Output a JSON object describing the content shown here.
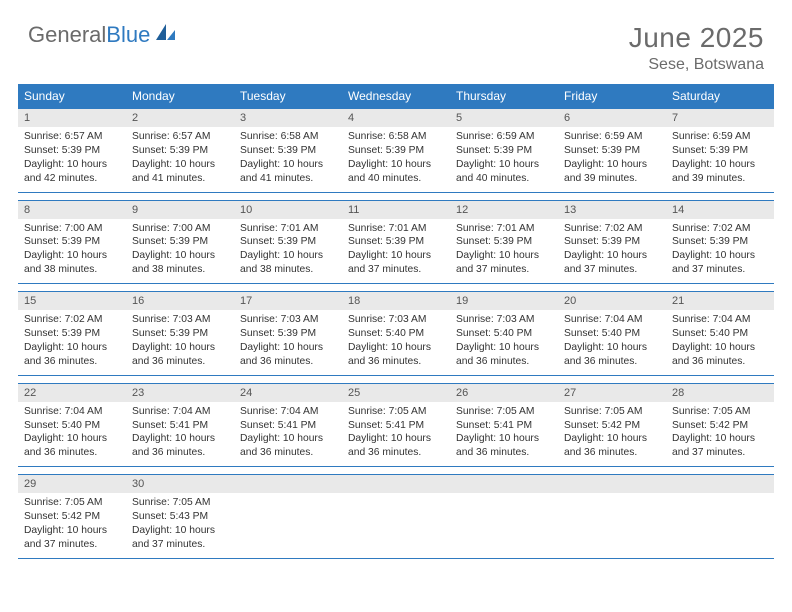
{
  "brand": {
    "word1": "General",
    "word2": "Blue"
  },
  "title": "June 2025",
  "location": "Sese, Botswana",
  "colors": {
    "header_bg": "#2f7ac0",
    "header_text": "#ffffff",
    "daynum_bg": "#e9e9e9",
    "daynum_text": "#555555",
    "body_text": "#333333",
    "rule": "#2f7ac0",
    "title_text": "#6b6b6b",
    "logo_accent": "#2f7ac0",
    "logo_gray": "#6b6b6b",
    "page_bg": "#ffffff"
  },
  "typography": {
    "title_fontsize": 28,
    "location_fontsize": 16,
    "dayhead_fontsize": 12,
    "daynum_fontsize": 11,
    "body_fontsize": 10.3
  },
  "day_headers": [
    "Sunday",
    "Monday",
    "Tuesday",
    "Wednesday",
    "Thursday",
    "Friday",
    "Saturday"
  ],
  "weeks": [
    [
      {
        "n": "1",
        "sr": "6:57 AM",
        "ss": "5:39 PM",
        "dh": "10",
        "dm": "42"
      },
      {
        "n": "2",
        "sr": "6:57 AM",
        "ss": "5:39 PM",
        "dh": "10",
        "dm": "41"
      },
      {
        "n": "3",
        "sr": "6:58 AM",
        "ss": "5:39 PM",
        "dh": "10",
        "dm": "41"
      },
      {
        "n": "4",
        "sr": "6:58 AM",
        "ss": "5:39 PM",
        "dh": "10",
        "dm": "40"
      },
      {
        "n": "5",
        "sr": "6:59 AM",
        "ss": "5:39 PM",
        "dh": "10",
        "dm": "40"
      },
      {
        "n": "6",
        "sr": "6:59 AM",
        "ss": "5:39 PM",
        "dh": "10",
        "dm": "39"
      },
      {
        "n": "7",
        "sr": "6:59 AM",
        "ss": "5:39 PM",
        "dh": "10",
        "dm": "39"
      }
    ],
    [
      {
        "n": "8",
        "sr": "7:00 AM",
        "ss": "5:39 PM",
        "dh": "10",
        "dm": "38"
      },
      {
        "n": "9",
        "sr": "7:00 AM",
        "ss": "5:39 PM",
        "dh": "10",
        "dm": "38"
      },
      {
        "n": "10",
        "sr": "7:01 AM",
        "ss": "5:39 PM",
        "dh": "10",
        "dm": "38"
      },
      {
        "n": "11",
        "sr": "7:01 AM",
        "ss": "5:39 PM",
        "dh": "10",
        "dm": "37"
      },
      {
        "n": "12",
        "sr": "7:01 AM",
        "ss": "5:39 PM",
        "dh": "10",
        "dm": "37"
      },
      {
        "n": "13",
        "sr": "7:02 AM",
        "ss": "5:39 PM",
        "dh": "10",
        "dm": "37"
      },
      {
        "n": "14",
        "sr": "7:02 AM",
        "ss": "5:39 PM",
        "dh": "10",
        "dm": "37"
      }
    ],
    [
      {
        "n": "15",
        "sr": "7:02 AM",
        "ss": "5:39 PM",
        "dh": "10",
        "dm": "36"
      },
      {
        "n": "16",
        "sr": "7:03 AM",
        "ss": "5:39 PM",
        "dh": "10",
        "dm": "36"
      },
      {
        "n": "17",
        "sr": "7:03 AM",
        "ss": "5:39 PM",
        "dh": "10",
        "dm": "36"
      },
      {
        "n": "18",
        "sr": "7:03 AM",
        "ss": "5:40 PM",
        "dh": "10",
        "dm": "36"
      },
      {
        "n": "19",
        "sr": "7:03 AM",
        "ss": "5:40 PM",
        "dh": "10",
        "dm": "36"
      },
      {
        "n": "20",
        "sr": "7:04 AM",
        "ss": "5:40 PM",
        "dh": "10",
        "dm": "36"
      },
      {
        "n": "21",
        "sr": "7:04 AM",
        "ss": "5:40 PM",
        "dh": "10",
        "dm": "36"
      }
    ],
    [
      {
        "n": "22",
        "sr": "7:04 AM",
        "ss": "5:40 PM",
        "dh": "10",
        "dm": "36"
      },
      {
        "n": "23",
        "sr": "7:04 AM",
        "ss": "5:41 PM",
        "dh": "10",
        "dm": "36"
      },
      {
        "n": "24",
        "sr": "7:04 AM",
        "ss": "5:41 PM",
        "dh": "10",
        "dm": "36"
      },
      {
        "n": "25",
        "sr": "7:05 AM",
        "ss": "5:41 PM",
        "dh": "10",
        "dm": "36"
      },
      {
        "n": "26",
        "sr": "7:05 AM",
        "ss": "5:41 PM",
        "dh": "10",
        "dm": "36"
      },
      {
        "n": "27",
        "sr": "7:05 AM",
        "ss": "5:42 PM",
        "dh": "10",
        "dm": "36"
      },
      {
        "n": "28",
        "sr": "7:05 AM",
        "ss": "5:42 PM",
        "dh": "10",
        "dm": "37"
      }
    ],
    [
      {
        "n": "29",
        "sr": "7:05 AM",
        "ss": "5:42 PM",
        "dh": "10",
        "dm": "37"
      },
      {
        "n": "30",
        "sr": "7:05 AM",
        "ss": "5:43 PM",
        "dh": "10",
        "dm": "37"
      },
      null,
      null,
      null,
      null,
      null
    ]
  ],
  "labels": {
    "sunrise": "Sunrise:",
    "sunset": "Sunset:",
    "daylight": "Daylight:",
    "hours": "hours",
    "and": "and",
    "minutes": "minutes."
  }
}
